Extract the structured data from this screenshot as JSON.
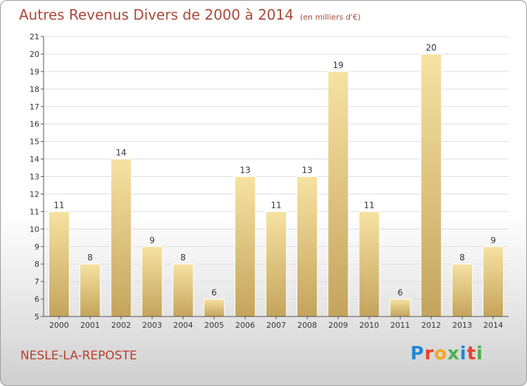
{
  "title": "Autres Revenus Divers de 2000 à 2014",
  "unit": "(en milliers d'€)",
  "commune": "NESLE-LA-REPOSTE",
  "logo": {
    "letters": [
      "P",
      "r",
      "o",
      "x",
      "i",
      "t",
      "i"
    ],
    "colors": [
      "#1e88d6",
      "#e8402a",
      "#f5a623",
      "#4caf50",
      "#1e88d6",
      "#e8402a",
      "#4caf50"
    ]
  },
  "colors": {
    "title": "#a84a3a",
    "bar_light": "#f7e2a2",
    "bar_dark": "#c4a45c",
    "grid": "#dddddd"
  },
  "chart_data": {
    "type": "bar",
    "title": "Autres Revenus Divers de 2000 à 2014",
    "unit": "(en milliers d'€)",
    "categories": [
      "2000",
      "2001",
      "2002",
      "2003",
      "2004",
      "2005",
      "2006",
      "2007",
      "2008",
      "2009",
      "2010",
      "2011",
      "2012",
      "2013",
      "2014"
    ],
    "values": [
      11,
      8,
      14,
      9,
      8,
      6,
      13,
      11,
      13,
      19,
      11,
      6,
      20,
      8,
      9
    ],
    "ylim": [
      5,
      21
    ],
    "yticks": [
      5,
      6,
      7,
      8,
      9,
      10,
      11,
      12,
      13,
      14,
      15,
      16,
      17,
      18,
      19,
      20,
      21
    ],
    "grid": true,
    "legend": "none"
  }
}
